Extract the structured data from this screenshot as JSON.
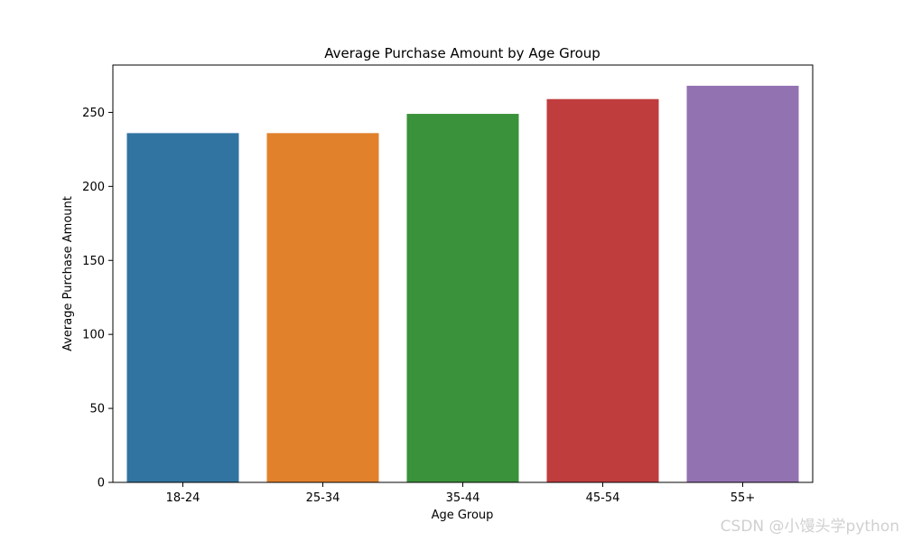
{
  "chart_data": {
    "type": "bar",
    "title": "Average Purchase Amount by Age Group",
    "xlabel": "Age Group",
    "ylabel": "Average Purchase Amount",
    "categories": [
      "18-24",
      "25-34",
      "35-44",
      "45-54",
      "55+"
    ],
    "values": [
      236,
      236,
      249,
      259,
      268
    ],
    "colors": [
      "#3274a1",
      "#e1812c",
      "#3a923a",
      "#c03d3e",
      "#9372b2"
    ],
    "ylim": [
      0,
      282
    ],
    "yticks": [
      0,
      50,
      100,
      150,
      200,
      250
    ],
    "grid": false
  },
  "watermark": "CSDN @小馒头学python"
}
